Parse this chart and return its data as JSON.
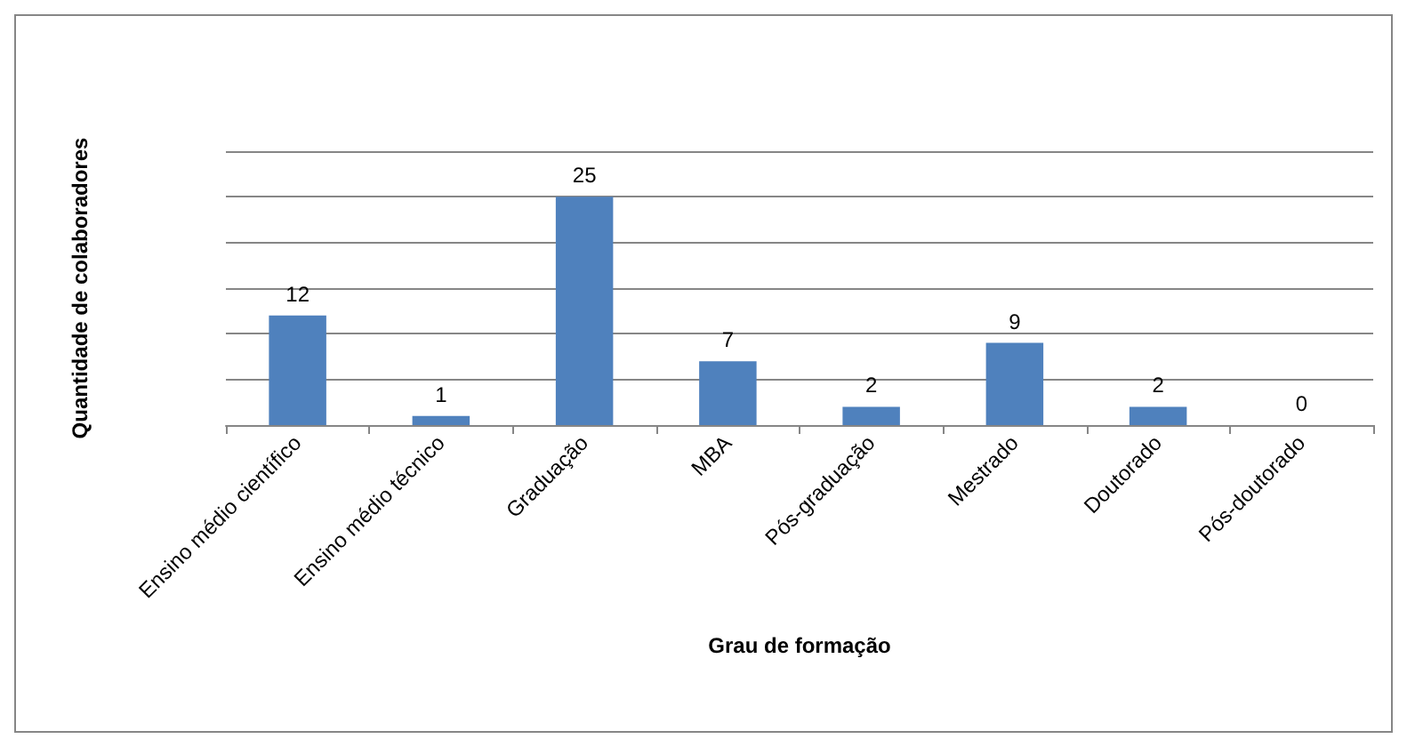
{
  "chart_data": {
    "type": "bar",
    "xlabel": "Grau de formação",
    "ylabel": "Quantidade de colaboradores",
    "categories": [
      "Ensino médio científico",
      "Ensino médio técnico",
      "Graduação",
      "MBA",
      "Pós-graduação",
      "Mestrado",
      "Doutorado",
      "Pós-doutorado"
    ],
    "values": [
      12,
      1,
      25,
      7,
      2,
      9,
      2,
      0
    ],
    "color": "#4f81bd",
    "ylim": [
      0,
      30
    ],
    "yticks": [
      {
        "value": 0,
        "label": null
      },
      {
        "value": 5,
        "label": null
      },
      {
        "value": 10,
        "label": null
      },
      {
        "value": 15,
        "label": null
      },
      {
        "value": 20,
        "label": null
      },
      {
        "value": 25,
        "label": null
      },
      {
        "value": 30,
        "label": null
      }
    ],
    "tick_labels": "x",
    "grid": "y",
    "data_labels": true
  }
}
